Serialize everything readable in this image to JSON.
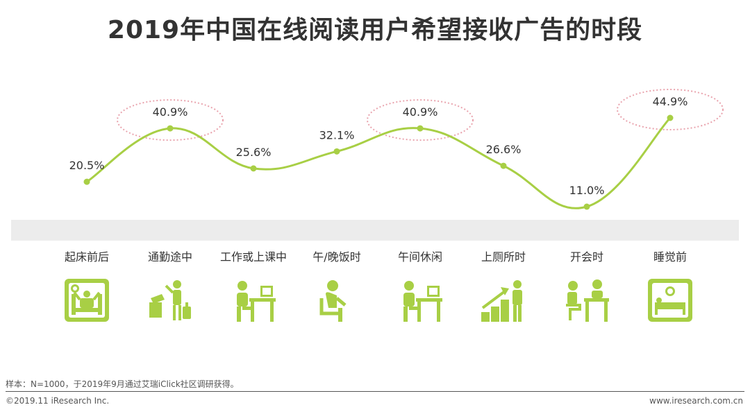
{
  "title": "2019年中国在线阅读用户希望接收广告的时段",
  "chart_data": {
    "type": "line",
    "title": "2019年中国在线阅读用户希望接收广告的时段",
    "categories": [
      "起床前后",
      "通勤途中",
      "工作或上课中",
      "午/晚饭时",
      "午间休闲",
      "上厕所时",
      "开会时",
      "睡觉前"
    ],
    "values": [
      20.5,
      40.9,
      25.6,
      32.1,
      40.9,
      26.6,
      11.0,
      44.9
    ],
    "labels": [
      "20.5%",
      "40.9%",
      "25.6%",
      "32.1%",
      "40.9%",
      "26.6%",
      "11.0%",
      "44.9%"
    ],
    "highlighted": [
      1,
      4,
      7
    ],
    "grid": false,
    "line_color": "#a8cf45",
    "highlight_color": "#e9a3ad"
  },
  "icons": [
    "alarm-clock-bed-icon",
    "commuter-luggage-icon",
    "desk-worker-icon",
    "seated-person-icon",
    "desk-worker-icon",
    "growth-stairs-icon",
    "meeting-icon",
    "sleeping-bed-icon"
  ],
  "footer": {
    "note": "样本：N=1000，于2019年9月通过艾瑞iClick社区调研获得。",
    "copyright": "©2019.11 iResearch Inc.",
    "site": "www.iresearch.com.cn"
  }
}
